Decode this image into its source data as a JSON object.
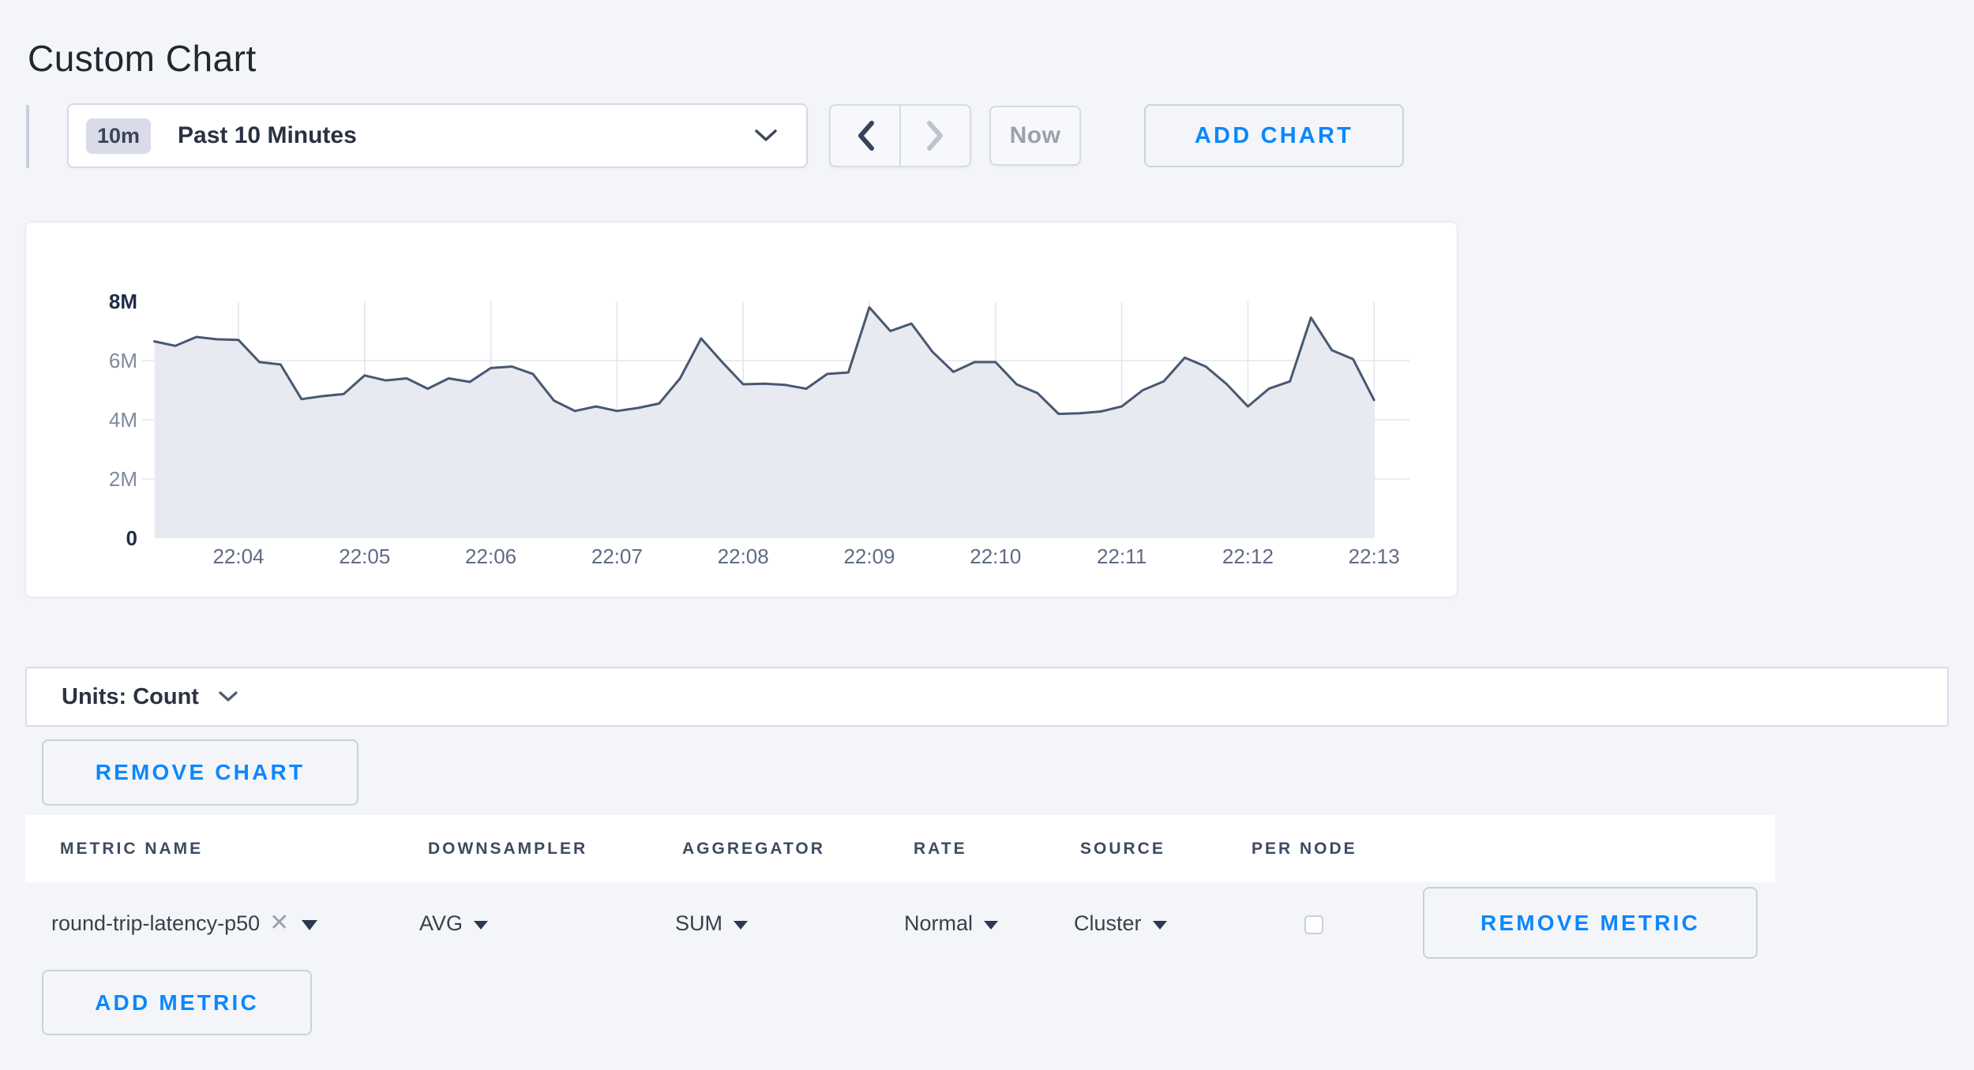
{
  "page": {
    "title": "Custom Chart",
    "background": "#f4f5f9",
    "accent_blue": "#0b87ff"
  },
  "toolbar": {
    "time_badge": "10m",
    "time_label": "Past 10 Minutes",
    "now_label": "Now",
    "add_chart_label": "ADD CHART",
    "icons": {
      "time_caret": "chevron-down",
      "prev": "chevron-left",
      "next": "chevron-right"
    },
    "next_disabled": true
  },
  "chart_data": {
    "type": "area",
    "title": "",
    "series": [
      {
        "name": "round-trip-latency-p50",
        "unit": "count",
        "values_millions": [
          6.65,
          6.5,
          6.8,
          6.72,
          6.7,
          5.95,
          5.87,
          4.7,
          4.8,
          4.87,
          5.5,
          5.33,
          5.4,
          5.05,
          5.4,
          5.28,
          5.75,
          5.8,
          5.55,
          4.65,
          4.3,
          4.45,
          4.3,
          4.4,
          4.55,
          5.4,
          6.75,
          5.95,
          5.2,
          5.22,
          5.18,
          5.05,
          5.55,
          5.6,
          7.8,
          7.0,
          7.25,
          6.3,
          5.62,
          5.95,
          5.95,
          5.2,
          4.9,
          4.2,
          4.22,
          4.28,
          4.45,
          5.0,
          5.3,
          6.1,
          5.8,
          5.2,
          4.45,
          5.05,
          5.3,
          7.45,
          6.35,
          6.05,
          4.67
        ]
      }
    ],
    "x_start": "22:03:20",
    "x_end": "22:13:00",
    "x_interval_seconds": 10,
    "x_ticks": [
      "22:04",
      "22:05",
      "22:06",
      "22:07",
      "22:08",
      "22:09",
      "22:10",
      "22:11",
      "22:12",
      "22:13"
    ],
    "y_ticks": [
      {
        "label": "0",
        "value": 0,
        "emphasis": true
      },
      {
        "label": "2M",
        "value": 2000000,
        "emphasis": false
      },
      {
        "label": "4M",
        "value": 4000000,
        "emphasis": false
      },
      {
        "label": "6M",
        "value": 6000000,
        "emphasis": false
      },
      {
        "label": "8M",
        "value": 8000000,
        "emphasis": true
      }
    ],
    "ylim": [
      0,
      8000000
    ],
    "grid": true,
    "legend": "none",
    "line_color": "#475872",
    "fill_color": "#e8eaf1",
    "grid_color": "#e2e6ee",
    "x_label_color": "#5f6b84",
    "y_minor_label_color": "#7e89a0",
    "y_emphasis_label_color": "#1f2c48"
  },
  "units_bar": {
    "label": "Units: Count",
    "icon": "chevron-down"
  },
  "chart_actions": {
    "remove_chart_label": "REMOVE CHART"
  },
  "metrics_table": {
    "headers": [
      "METRIC NAME",
      "DOWNSAMPLER",
      "AGGREGATOR",
      "RATE",
      "SOURCE",
      "PER NODE"
    ],
    "rows": [
      {
        "metric_name": "round-trip-latency-p50",
        "clear_icon": "x",
        "downsampler": "AVG",
        "aggregator": "SUM",
        "rate": "Normal",
        "source": "Cluster",
        "per_node_checked": false,
        "remove_label": "REMOVE METRIC"
      }
    ],
    "add_metric_label": "ADD METRIC"
  }
}
